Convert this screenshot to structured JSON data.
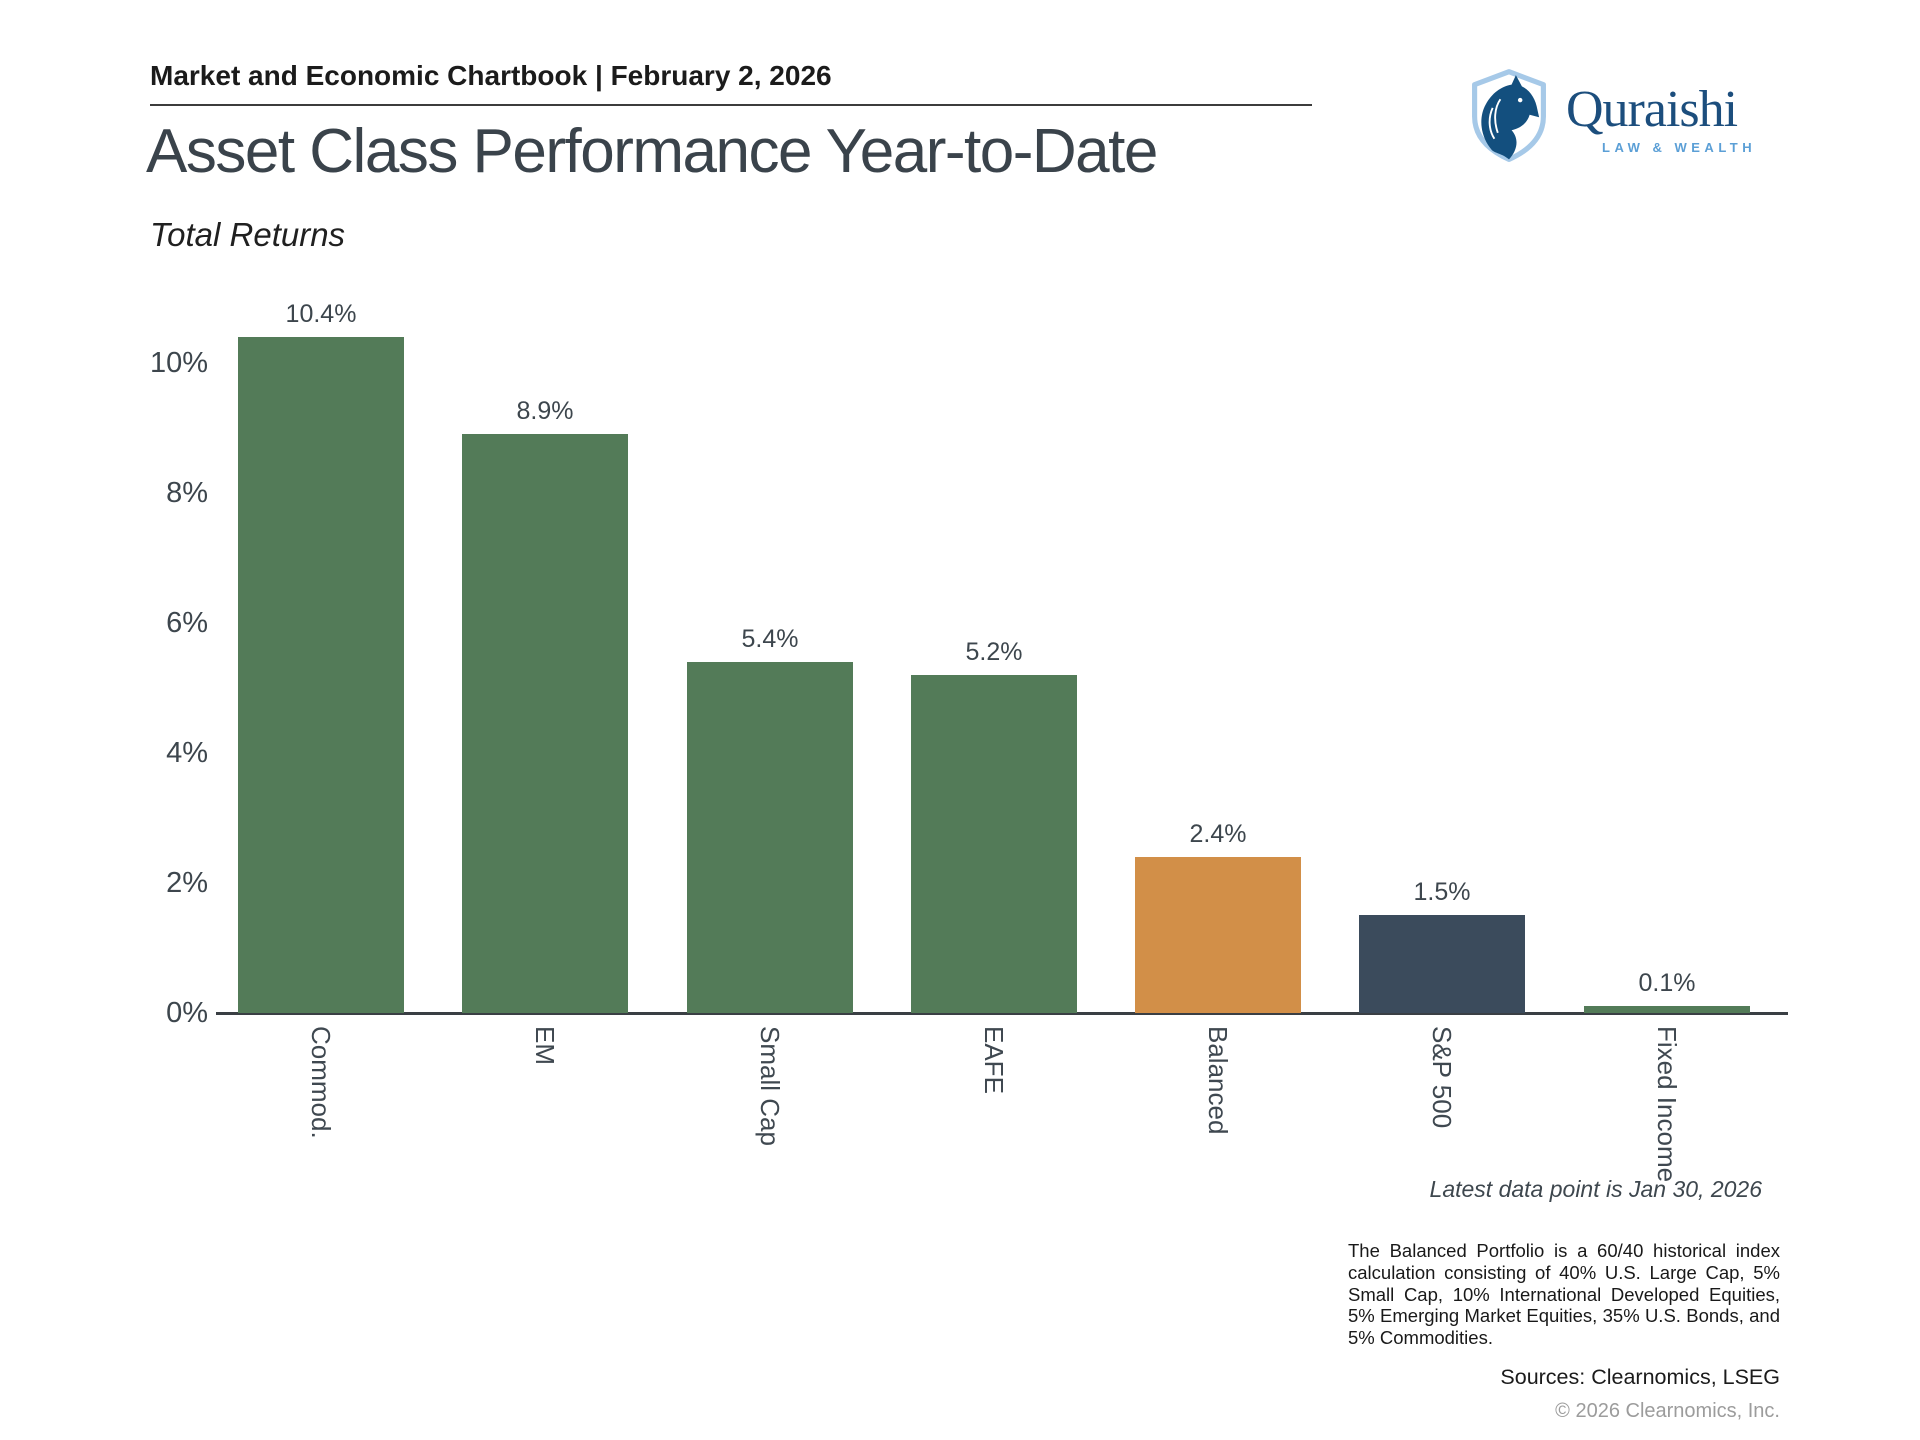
{
  "report_header": "Market and Economic Chartbook | February 2, 2026",
  "title": "Asset Class Performance Year-to-Date",
  "subtitle": "Total Returns",
  "logo": {
    "name": "Quraishi",
    "tagline": "LAW & WEALTH",
    "navy": "#134f7e",
    "light_blue": "#a6c9e8",
    "text_navy": "#1c4e7d",
    "tagline_blue": "#5b9fd6"
  },
  "chart_data": {
    "type": "bar",
    "title": "Asset Class Performance Year-to-Date",
    "subtitle": "Total Returns",
    "categories": [
      "Commod.",
      "EM",
      "Small Cap",
      "EAFE",
      "Balanced",
      "S&P 500",
      "Fixed Income"
    ],
    "values": [
      10.4,
      8.9,
      5.4,
      5.2,
      2.4,
      1.5,
      0.1
    ],
    "value_labels": [
      "10.4%",
      "8.9%",
      "5.4%",
      "5.2%",
      "2.4%",
      "1.5%",
      "0.1%"
    ],
    "bar_colors": [
      "#537b58",
      "#537b58",
      "#537b58",
      "#537b58",
      "#d28f48",
      "#3b4b5c",
      "#537b58"
    ],
    "xlabel": "",
    "ylabel": "",
    "ylim": [
      0,
      11
    ],
    "yticks": [
      "0%",
      "2%",
      "4%",
      "6%",
      "8%",
      "10%"
    ],
    "ytick_values": [
      0,
      2,
      4,
      6,
      8,
      10
    ],
    "grid": false,
    "legend": "none",
    "note": "Latest data point is Jan 30, 2026"
  },
  "footer": {
    "footnote": "The Balanced Portfolio is a 60/40 historical index calculation consisting of 40% U.S. Large Cap, 5% Small Cap, 10% International Developed Equities, 5% Emerging Market Equities, 35% U.S. Bonds, and 5% Commodities.",
    "sources": "Sources: Clearnomics, LSEG",
    "copyright": "© 2026 Clearnomics, Inc."
  },
  "colors": {
    "green": "#537b58",
    "orange": "#d28f48",
    "navy": "#3b4b5c",
    "axis": "#3a3f44",
    "text_dark": "#3d464d"
  }
}
